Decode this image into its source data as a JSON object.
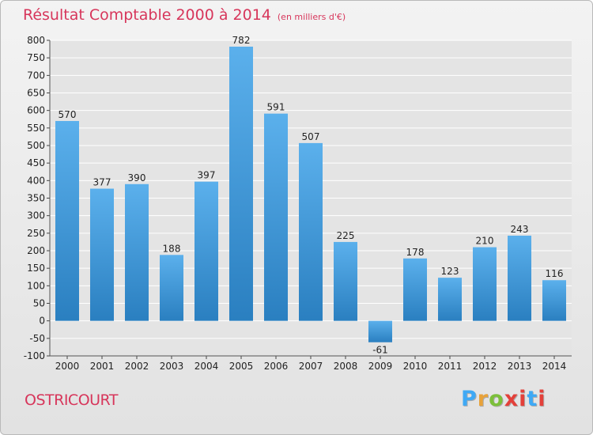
{
  "colors": {
    "title": "#d7365b",
    "bar_light": "#5bb0ec",
    "bar_dark": "#2a7fc0",
    "grid": "#ffffff",
    "axis_text": "#222222",
    "brand_letters": [
      "#3fa9f5",
      "#e8a23a",
      "#7cbf3a",
      "#e3403a",
      "#e3403a",
      "#3fa9f5",
      "#e3403a"
    ]
  },
  "header": {
    "title": "Résultat Comptable 2000 à 2014",
    "unit": "(en milliers d'€)"
  },
  "footer": {
    "commune": "OSTRICOURT",
    "brand": [
      "P",
      "r",
      "o",
      "x",
      "i",
      "t",
      "i"
    ]
  },
  "chart_data": {
    "type": "bar",
    "title": "Résultat Comptable 2000 à 2014",
    "subtitle": "(en milliers d'€)",
    "xlabel": "",
    "ylabel": "",
    "categories": [
      "2000",
      "2001",
      "2002",
      "2003",
      "2004",
      "2005",
      "2006",
      "2007",
      "2008",
      "2009",
      "2010",
      "2011",
      "2012",
      "2013",
      "2014"
    ],
    "values": [
      570,
      377,
      390,
      188,
      397,
      782,
      591,
      507,
      225,
      -61,
      178,
      123,
      210,
      243,
      116
    ],
    "value_labels": [
      "570",
      "377",
      "390",
      "188",
      "397",
      "782",
      "591",
      "507",
      "225",
      "-61",
      "178",
      "123",
      "210",
      "243",
      "116"
    ],
    "ylim": [
      -100,
      800
    ],
    "yticks": [
      -100,
      -50,
      0,
      50,
      100,
      150,
      200,
      250,
      300,
      350,
      400,
      450,
      500,
      550,
      600,
      650,
      700,
      750,
      800
    ],
    "grid": true,
    "legend": "none"
  }
}
